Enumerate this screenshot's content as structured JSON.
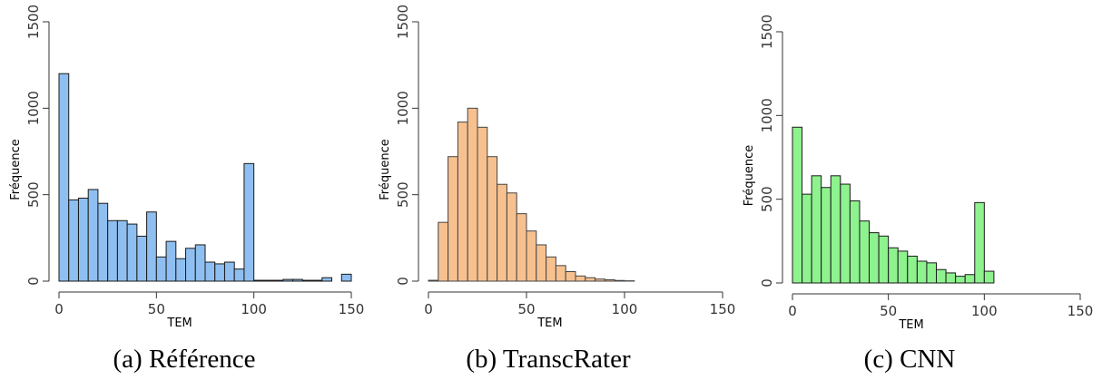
{
  "figure": {
    "panels": [
      {
        "caption": "(a) Référence",
        "color": "#8fbff0",
        "edge": "#1a1a1a"
      },
      {
        "caption": "(b) TranscRater",
        "color": "#f7c18f",
        "edge": "#444444"
      },
      {
        "caption": "(c) CNN",
        "color": "#8ef28e",
        "edge": "#1a1a1a"
      }
    ]
  },
  "chart_data": [
    {
      "type": "bar",
      "title": "",
      "xlabel": "TEM",
      "ylabel": "Fréquence",
      "xlim": [
        0,
        150
      ],
      "ylim": [
        0,
        1500
      ],
      "x_ticks": [
        0,
        50,
        100,
        150
      ],
      "y_ticks": [
        0,
        500,
        1000,
        1500
      ],
      "bin_width": 5,
      "bin_starts": [
        0,
        5,
        10,
        15,
        20,
        25,
        30,
        35,
        40,
        45,
        50,
        55,
        60,
        65,
        70,
        75,
        80,
        85,
        90,
        95,
        100,
        105,
        110,
        115,
        120,
        125,
        130,
        135,
        140,
        145
      ],
      "values": [
        1200,
        470,
        480,
        530,
        450,
        350,
        350,
        330,
        260,
        400,
        140,
        230,
        130,
        190,
        210,
        110,
        100,
        110,
        70,
        680,
        5,
        5,
        5,
        10,
        10,
        5,
        5,
        20,
        0,
        40
      ]
    },
    {
      "type": "bar",
      "title": "",
      "xlabel": "TEM",
      "ylabel": "Fréquence",
      "xlim": [
        0,
        150
      ],
      "ylim": [
        0,
        1500
      ],
      "x_ticks": [
        0,
        50,
        100,
        150
      ],
      "y_ticks": [
        0,
        500,
        1000,
        1500
      ],
      "bin_width": 5,
      "bin_starts": [
        0,
        5,
        10,
        15,
        20,
        25,
        30,
        35,
        40,
        45,
        50,
        55,
        60,
        65,
        70,
        75,
        80,
        85,
        90,
        95,
        100
      ],
      "values": [
        5,
        340,
        720,
        920,
        1000,
        890,
        720,
        560,
        510,
        390,
        290,
        210,
        140,
        90,
        55,
        30,
        20,
        12,
        8,
        4,
        2
      ]
    },
    {
      "type": "bar",
      "title": "",
      "xlabel": "TEM",
      "ylabel": "Fréquence",
      "xlim": [
        0,
        150
      ],
      "ylim": [
        0,
        1500
      ],
      "x_ticks": [
        0,
        50,
        100,
        150
      ],
      "y_ticks": [
        0,
        500,
        1000,
        1500
      ],
      "bin_width": 5,
      "bin_starts": [
        0,
        5,
        10,
        15,
        20,
        25,
        30,
        35,
        40,
        45,
        50,
        55,
        60,
        65,
        70,
        75,
        80,
        85,
        90,
        95,
        100
      ],
      "values": [
        930,
        530,
        640,
        570,
        640,
        590,
        490,
        370,
        300,
        280,
        210,
        190,
        160,
        130,
        120,
        80,
        60,
        40,
        50,
        480,
        70
      ]
    }
  ]
}
